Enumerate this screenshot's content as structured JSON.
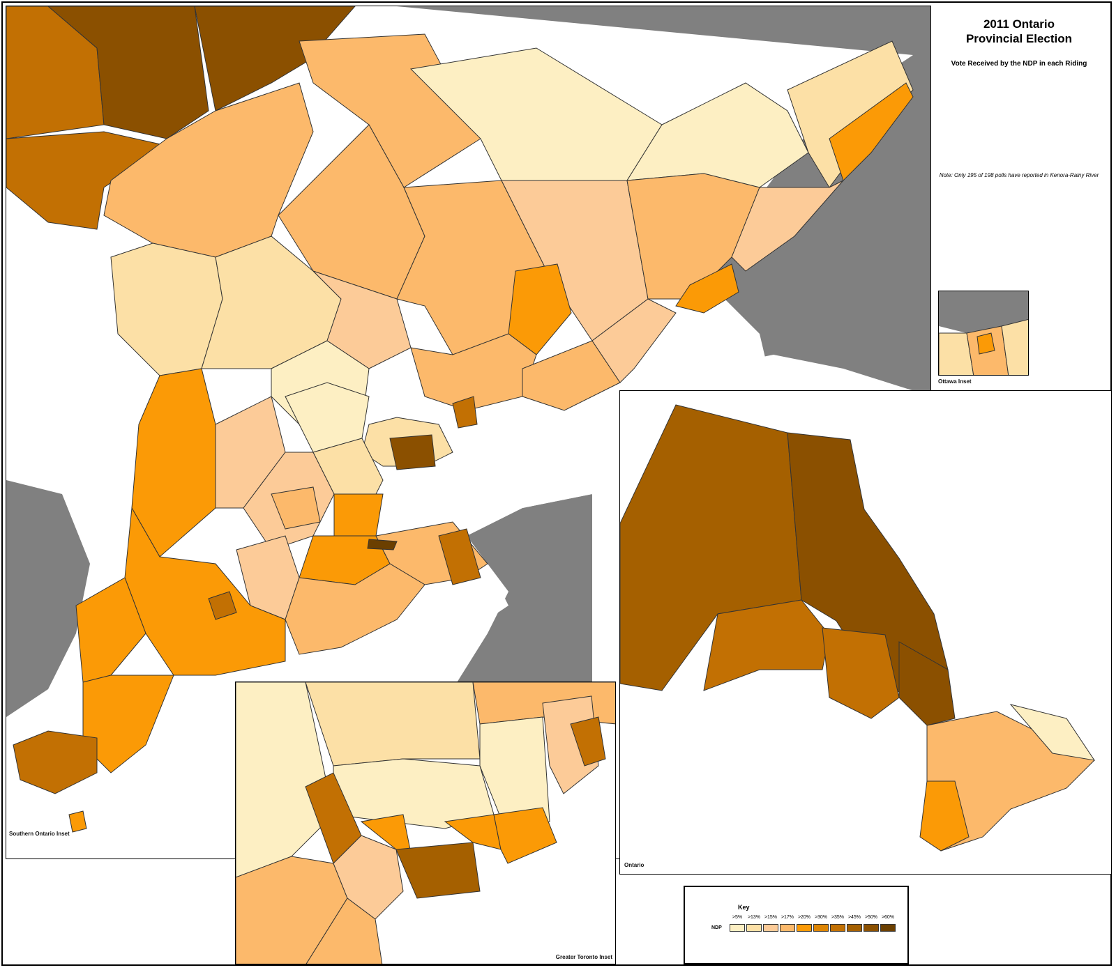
{
  "header": {
    "title_line1": "2011 Ontario",
    "title_line2": "Provincial Election",
    "subtitle": "Vote Received by the NDP in each Riding",
    "note": "Note: Only 195 of 198 polls have reported in Kenora-Rainy River"
  },
  "insets": {
    "southern": "Southern Ontario Inset",
    "ottawa": "Ottawa Inset",
    "toronto": "Greater Toronto Inset",
    "ontario": "Ontario"
  },
  "legend": {
    "title": "Key",
    "row_label": "NDP",
    "items": [
      {
        "label": ">5%",
        "color": "#fdefc3"
      },
      {
        "label": ">13%",
        "color": "#fce0a6"
      },
      {
        "label": ">15%",
        "color": "#fccb98"
      },
      {
        "label": ">17%",
        "color": "#fcb96b"
      },
      {
        "label": ">20%",
        "color": "#fb9a06"
      },
      {
        "label": ">30%",
        "color": "#dd8504"
      },
      {
        "label": ">35%",
        "color": "#c27003"
      },
      {
        "label": ">45%",
        "color": "#a56000"
      },
      {
        "label": ">50%",
        "color": "#8b5000"
      },
      {
        "label": ">60%",
        "color": "#6b3f00"
      }
    ]
  },
  "colors": {
    "water": "#ffffff",
    "us_land": "#808080",
    "border": "#333333"
  }
}
